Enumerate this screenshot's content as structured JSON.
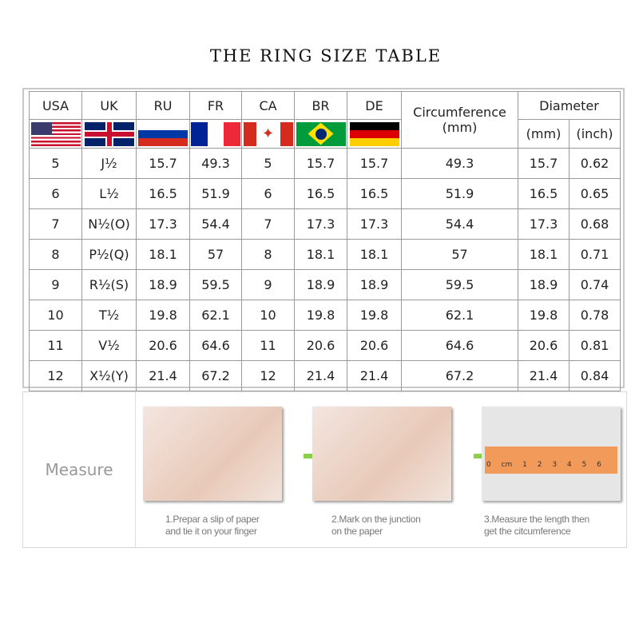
{
  "title": "THE RING SIZE TABLE",
  "headers": [
    "USA",
    "UK",
    "RU",
    "FR",
    "CA",
    "BR",
    "DE"
  ],
  "circumference_header": "Circumference",
  "circumference_unit": "(mm)",
  "diameter_header": "Diameter",
  "diameter_units": [
    "(mm)",
    "(inch)"
  ],
  "flags": [
    "us-flag",
    "uk-flag",
    "ru-flag",
    "fr-flag",
    "ca-flag",
    "br-flag",
    "de-flag"
  ],
  "rows": [
    [
      "5",
      "J½",
      "15.7",
      "49.3",
      "5",
      "15.7",
      "15.7",
      "49.3",
      "15.7",
      "0.62"
    ],
    [
      "6",
      "L½",
      "16.5",
      "51.9",
      "6",
      "16.5",
      "16.5",
      "51.9",
      "16.5",
      "0.65"
    ],
    [
      "7",
      "N½(O)",
      "17.3",
      "54.4",
      "7",
      "17.3",
      "17.3",
      "54.4",
      "17.3",
      "0.68"
    ],
    [
      "8",
      "P½(Q)",
      "18.1",
      "57",
      "8",
      "18.1",
      "18.1",
      "57",
      "18.1",
      "0.71"
    ],
    [
      "9",
      "R½(S)",
      "18.9",
      "59.5",
      "9",
      "18.9",
      "18.9",
      "59.5",
      "18.9",
      "0.74"
    ],
    [
      "10",
      "T½",
      "19.8",
      "62.1",
      "10",
      "19.8",
      "19.8",
      "62.1",
      "19.8",
      "0.78"
    ],
    [
      "11",
      "V½",
      "20.6",
      "64.6",
      "11",
      "20.6",
      "20.6",
      "64.6",
      "20.6",
      "0.81"
    ],
    [
      "12",
      "X½(Y)",
      "21.4",
      "67.2",
      "12",
      "21.4",
      "21.4",
      "67.2",
      "21.4",
      "0.84"
    ]
  ],
  "measure": {
    "label": "Measure",
    "steps": [
      {
        "line1": "1.Prepar a slip of paper",
        "line2": "and tie it on your finger"
      },
      {
        "line1": "2.Mark on the junction",
        "line2": "on the paper"
      },
      {
        "line1": "3.Measure the length then",
        "line2": "get the citcumference"
      }
    ],
    "ruler_text": "0 cm 1 2 3 4 5 6"
  },
  "colors": {
    "arrow": "#8ccf4a",
    "border": "#9a9a9a"
  }
}
